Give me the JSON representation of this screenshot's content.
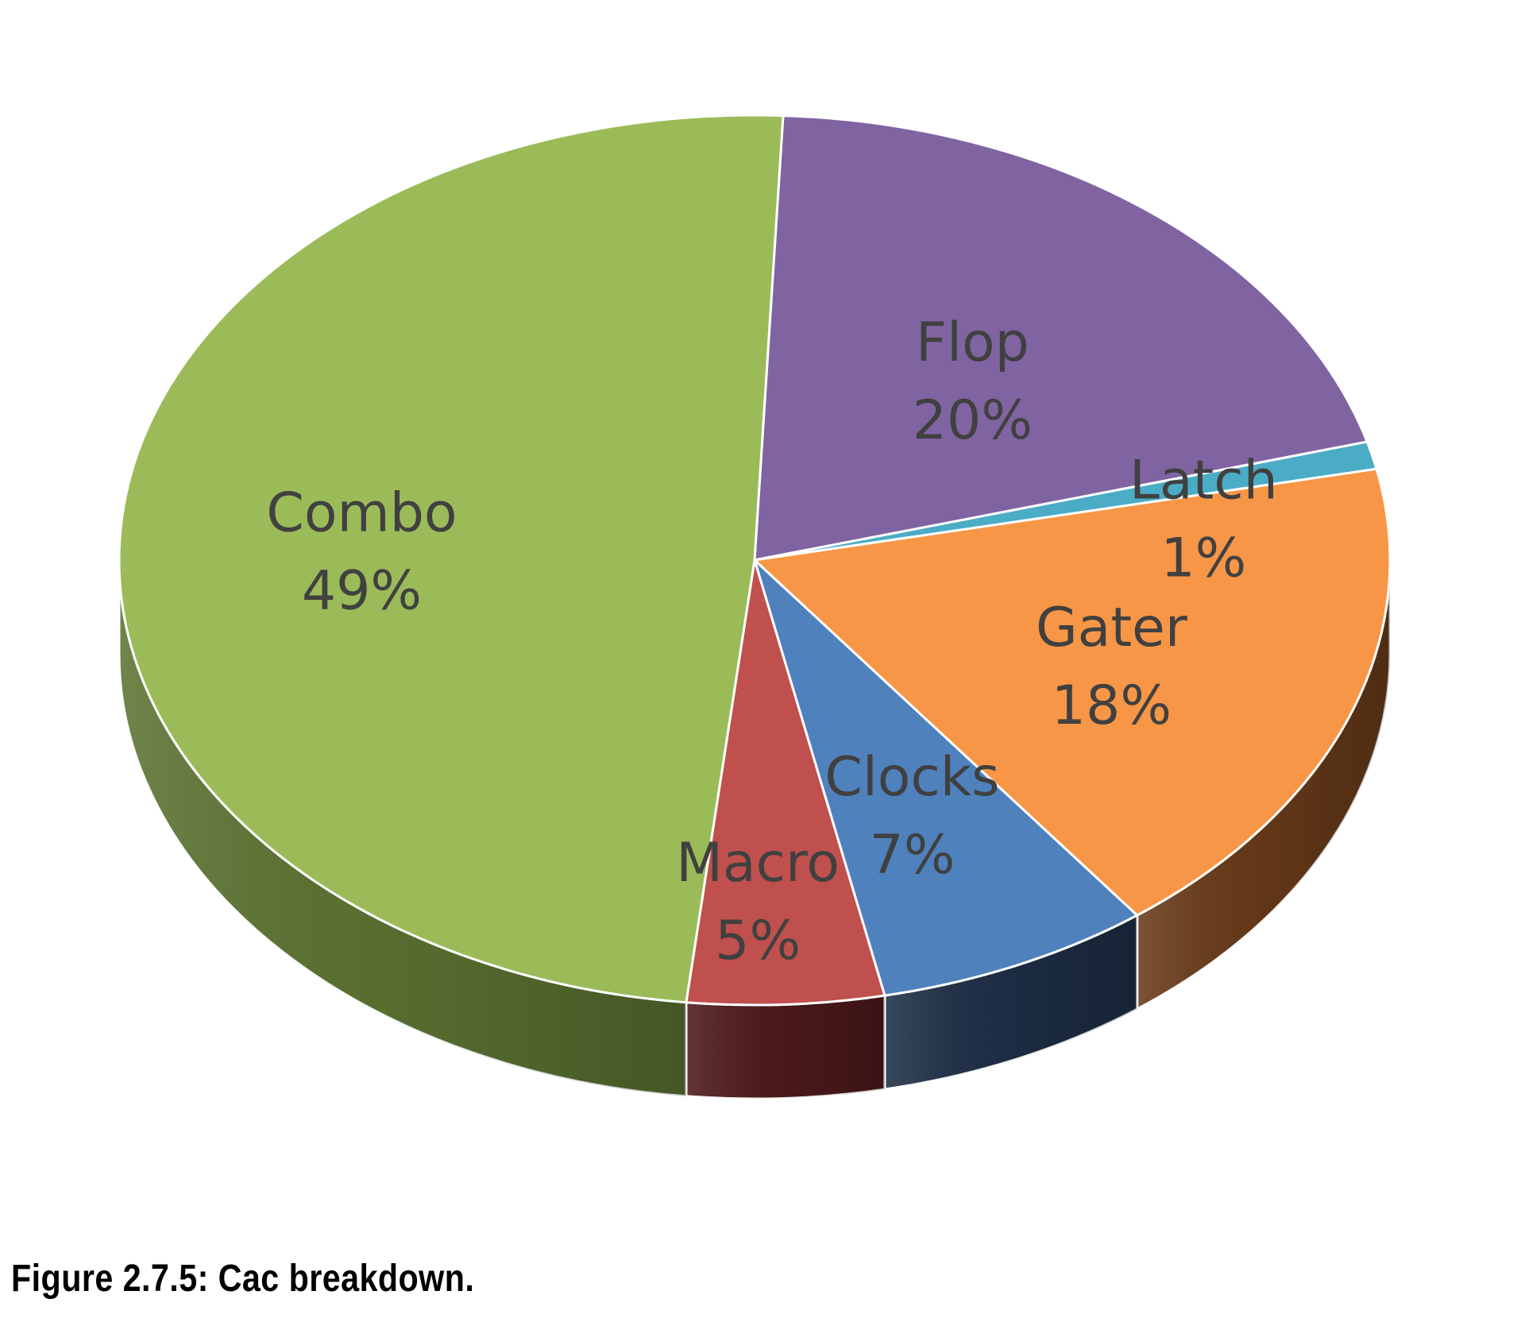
{
  "caption": "Figure 2.7.5: Cac breakdown.",
  "chart_data": {
    "type": "pie",
    "style": "3d",
    "slices": [
      {
        "label": "Flop",
        "value": 20,
        "value_label": "20%",
        "color": "#8064A2",
        "side_color": "#4B3A62"
      },
      {
        "label": "Latch",
        "value": 1,
        "value_label": "1%",
        "color": "#4BACC6",
        "side_color": "#2C6B7C"
      },
      {
        "label": "Gater",
        "value": 18,
        "value_label": "18%",
        "color": "#F79646",
        "side_color": "#693B19"
      },
      {
        "label": "Clocks",
        "value": 7,
        "value_label": "7%",
        "color": "#4F81BD",
        "side_color": "#1F2F47"
      },
      {
        "label": "Macro",
        "value": 5,
        "value_label": "5%",
        "color": "#C0504D",
        "side_color": "#4F1A1C"
      },
      {
        "label": "Combo",
        "value": 49,
        "value_label": "49%",
        "color": "#9BBB59",
        "side_color": "#5C7432"
      }
    ]
  }
}
